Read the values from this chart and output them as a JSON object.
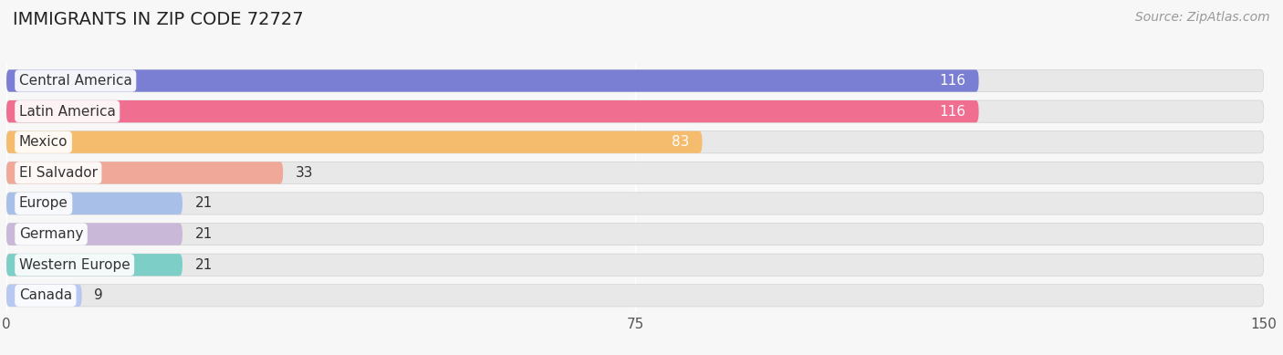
{
  "title": "IMMIGRANTS IN ZIP CODE 72727",
  "source": "Source: ZipAtlas.com",
  "categories": [
    "Central America",
    "Latin America",
    "Mexico",
    "El Salvador",
    "Europe",
    "Germany",
    "Western Europe",
    "Canada"
  ],
  "values": [
    116,
    116,
    83,
    33,
    21,
    21,
    21,
    9
  ],
  "bar_colors": [
    "#7b7fd4",
    "#f06e90",
    "#f5bc6e",
    "#f0a898",
    "#a8c0e8",
    "#c9b8d8",
    "#7ecec8",
    "#b8c8f0"
  ],
  "label_colors": [
    "white",
    "white",
    "black",
    "black",
    "black",
    "black",
    "black",
    "black"
  ],
  "xlim": [
    0,
    150
  ],
  "xticks": [
    0,
    75,
    150
  ],
  "background_color": "#f7f7f7",
  "bar_bg_color": "#e8e8e8",
  "title_fontsize": 14,
  "source_fontsize": 10,
  "label_fontsize": 11,
  "value_fontsize": 11
}
